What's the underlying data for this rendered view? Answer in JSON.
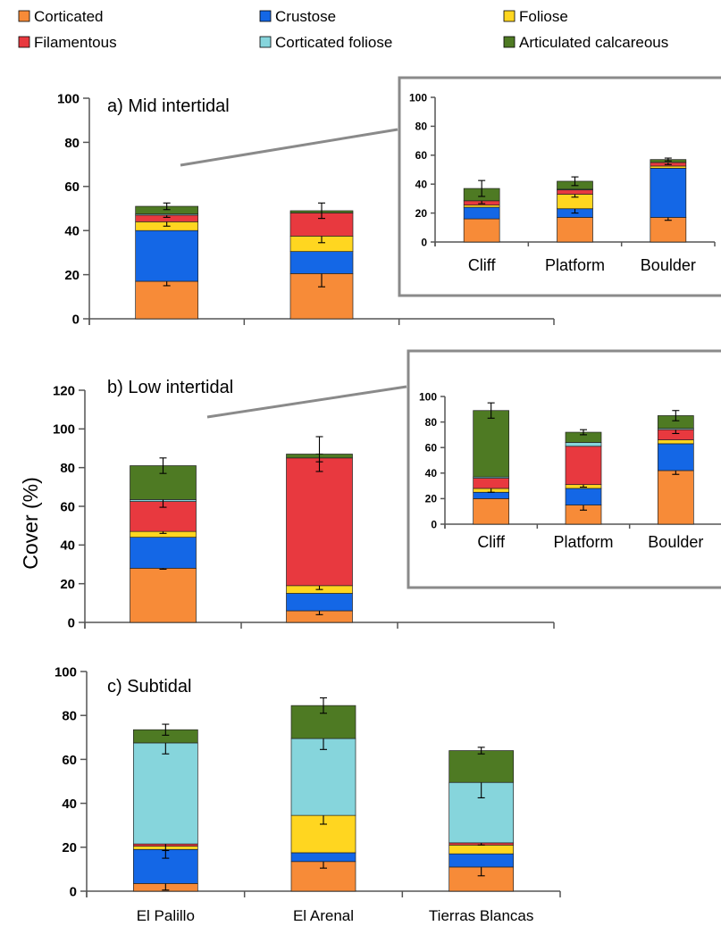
{
  "colors": {
    "Corticated": "#f78b38",
    "Crustose": "#1467e6",
    "Foliose": "#ffd620",
    "Filamentous": "#e8393f",
    "Corticated foliose": "#86d5dc",
    "Articulated calcareous": "#4e7a23"
  },
  "chart_data": {
    "type": "bar",
    "stacked": true,
    "legend": {
      "position": "top",
      "items": [
        "Corticated",
        "Crustose",
        "Foliose",
        "Filamentous",
        "Corticated foliose",
        "Articulated calcareous"
      ]
    },
    "ylabel": "Cover (%)",
    "panels": [
      {
        "id": "mid",
        "title": "a) Mid intertidal",
        "categories": [
          "El Palillo",
          "El Arenal"
        ],
        "ylim": [
          0,
          100
        ],
        "yticks": [
          "0",
          "20",
          "40",
          "60",
          "80",
          "100"
        ],
        "series": [
          {
            "name": "Corticated",
            "values": [
              17,
              20.5
            ],
            "errors": [
              2,
              6
            ]
          },
          {
            "name": "Crustose",
            "values": [
              23,
              10
            ],
            "errors": [
              0,
              0
            ]
          },
          {
            "name": "Foliose",
            "values": [
              4,
              7
            ],
            "errors": [
              2,
              3
            ]
          },
          {
            "name": "Filamentous",
            "values": [
              3,
              10.5
            ],
            "errors": [
              1,
              0
            ]
          },
          {
            "name": "Corticated foliose",
            "values": [
              0.5,
              0
            ],
            "errors": [
              0,
              0
            ]
          },
          {
            "name": "Articulated calcareous",
            "values": [
              3.5,
              1
            ],
            "errors": [
              1.5,
              3.5
            ]
          }
        ],
        "inset": {
          "categories": [
            "Cliff",
            "Platform",
            "Boulder"
          ],
          "ylim": [
            0,
            100
          ],
          "yticks": [
            "0",
            "20",
            "40",
            "60",
            "80",
            "100"
          ],
          "series": [
            {
              "name": "Corticated",
              "values": [
                16,
                17,
                17
              ],
              "errors": [
                0,
                0,
                2
              ]
            },
            {
              "name": "Crustose",
              "values": [
                8,
                6,
                34
              ],
              "errors": [
                0,
                3,
                0
              ]
            },
            {
              "name": "Foliose",
              "values": [
                1.5,
                10,
                1.5
              ],
              "errors": [
                0,
                2,
                0
              ]
            },
            {
              "name": "Filamentous",
              "values": [
                3,
                3,
                2.5
              ],
              "errors": [
                2,
                0,
                1.5
              ]
            },
            {
              "name": "Corticated foliose",
              "values": [
                0,
                0.5,
                0
              ],
              "errors": [
                0,
                0,
                0
              ]
            },
            {
              "name": "Articulated calcareous",
              "values": [
                8.5,
                5.5,
                2
              ],
              "errors": [
                5.5,
                3,
                1
              ]
            }
          ]
        }
      },
      {
        "id": "low",
        "title": "b) Low intertidal",
        "categories": [
          "El Palillo",
          "El Arenal"
        ],
        "ylim": [
          0,
          120
        ],
        "yticks": [
          "0",
          "20",
          "40",
          "60",
          "80",
          "100",
          "120"
        ],
        "series": [
          {
            "name": "Corticated",
            "values": [
              28,
              6
            ],
            "errors": [
              0.5,
              2
            ]
          },
          {
            "name": "Crustose",
            "values": [
              16,
              9
            ],
            "errors": [
              0,
              0
            ]
          },
          {
            "name": "Foliose",
            "values": [
              3,
              4
            ],
            "errors": [
              1,
              2
            ]
          },
          {
            "name": "Filamentous",
            "values": [
              15.5,
              66
            ],
            "errors": [
              0,
              0
            ]
          },
          {
            "name": "Corticated foliose",
            "values": [
              1,
              0
            ],
            "errors": [
              4,
              2
            ]
          },
          {
            "name": "Articulated calcareous",
            "values": [
              17.5,
              2
            ],
            "errors": [
              4,
              9
            ]
          }
        ],
        "inset": {
          "categories": [
            "Cliff",
            "Platform",
            "Boulder"
          ],
          "ylim": [
            0,
            100
          ],
          "yticks": [
            "0",
            "20",
            "40",
            "60",
            "80",
            "100"
          ],
          "series": [
            {
              "name": "Corticated",
              "values": [
                20,
                15,
                42
              ],
              "errors": [
                0,
                4,
                3
              ]
            },
            {
              "name": "Crustose",
              "values": [
                5,
                13,
                21
              ],
              "errors": [
                0,
                0,
                0
              ]
            },
            {
              "name": "Foliose",
              "values": [
                3,
                3,
                3
              ],
              "errors": [
                3,
                2,
                0
              ]
            },
            {
              "name": "Filamentous",
              "values": [
                8,
                30,
                8
              ],
              "errors": [
                0,
                0,
                3
              ]
            },
            {
              "name": "Corticated foliose",
              "values": [
                1,
                3,
                1
              ],
              "errors": [
                0,
                0,
                0
              ]
            },
            {
              "name": "Articulated calcareous",
              "values": [
                52,
                8,
                10
              ],
              "errors": [
                6,
                2,
                4
              ]
            }
          ]
        }
      },
      {
        "id": "sub",
        "title": "c) Subtidal",
        "categories": [
          "El Palillo",
          "El Arenal",
          "Tierras Blancas"
        ],
        "ylim": [
          0,
          100
        ],
        "yticks": [
          "0",
          "20",
          "40",
          "60",
          "80",
          "100"
        ],
        "series": [
          {
            "name": "Corticated",
            "values": [
              3.5,
              13.5,
              11
            ],
            "errors": [
              3,
              3,
              4
            ]
          },
          {
            "name": "Crustose",
            "values": [
              15.5,
              4,
              6
            ],
            "errors": [
              4,
              0,
              0
            ]
          },
          {
            "name": "Foliose",
            "values": [
              1.5,
              17,
              4
            ],
            "errors": [
              0,
              4,
              0
            ]
          },
          {
            "name": "Filamentous",
            "values": [
              1,
              0,
              1
            ],
            "errors": [
              3,
              0,
              1
            ]
          },
          {
            "name": "Corticated foliose",
            "values": [
              46,
              35,
              27.5
            ],
            "errors": [
              5,
              5,
              7
            ]
          },
          {
            "name": "Articulated calcareous",
            "values": [
              6,
              15,
              14.5
            ],
            "errors": [
              2.5,
              3.5,
              1.5
            ]
          }
        ]
      }
    ]
  }
}
